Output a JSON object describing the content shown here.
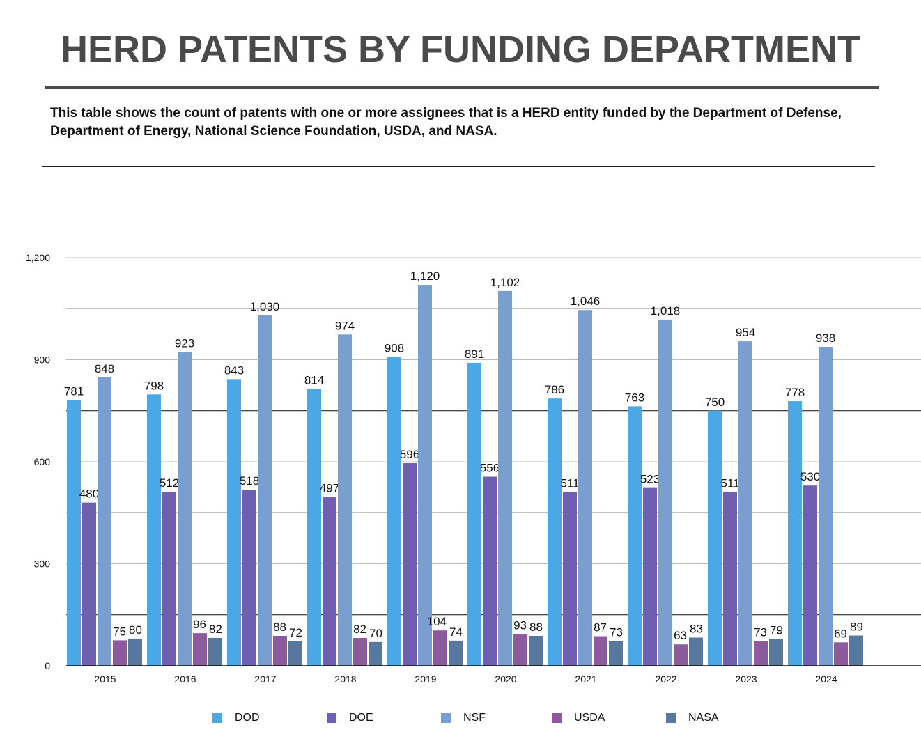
{
  "title": "HERD PATENTS BY FUNDING DEPARTMENT",
  "description": "This table shows the count of patents with one or more assignees that is a HERD entity funded by the Department of Defense, Department of Energy, National Science Foundation, USDA, and NASA.",
  "chart_data": {
    "type": "bar",
    "title": "HERD PATENTS BY FUNDING DEPARTMENT",
    "xlabel": "",
    "ylabel": "",
    "ylim": [
      0,
      1200
    ],
    "yticks": [
      0,
      300,
      600,
      900,
      1200
    ],
    "ytick_labels": [
      "0",
      "300",
      "600",
      "900",
      "1,200"
    ],
    "grid": true,
    "legend_position": "bottom",
    "categories": [
      "2015",
      "2016",
      "2017",
      "2018",
      "2019",
      "2020",
      "2021",
      "2022",
      "2023",
      "2024"
    ],
    "series": [
      {
        "name": "DOD",
        "color": "#4BA8E6",
        "values": [
          781,
          798,
          843,
          814,
          908,
          891,
          786,
          763,
          750,
          778
        ]
      },
      {
        "name": "DOE",
        "color": "#6E5FB0",
        "values": [
          480,
          512,
          518,
          497,
          596,
          556,
          511,
          523,
          511,
          530
        ]
      },
      {
        "name": "NSF",
        "color": "#789FD0",
        "values": [
          848,
          923,
          1030,
          974,
          1120,
          1102,
          1046,
          1018,
          954,
          938
        ]
      },
      {
        "name": "USDA",
        "color": "#8D5A9E",
        "values": [
          75,
          96,
          88,
          82,
          104,
          93,
          87,
          63,
          73,
          69
        ]
      },
      {
        "name": "NASA",
        "color": "#56789F",
        "values": [
          80,
          82,
          72,
          70,
          74,
          88,
          73,
          83,
          79,
          89
        ]
      }
    ]
  }
}
